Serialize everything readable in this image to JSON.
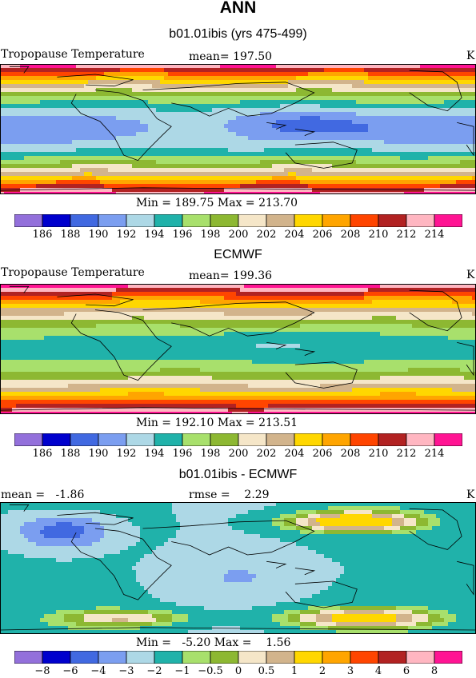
{
  "page": {
    "title": "ANN"
  },
  "panels": [
    {
      "subtitle": "b01.01ibis (yrs 475-499)",
      "left_label": "Tropopause Temperature",
      "center_label": "mean= 197.50",
      "right_label": "K",
      "minmax": "Min = 189.75 Max = 213.70",
      "palette": "abs",
      "scenario": "model"
    },
    {
      "subtitle": "ECMWF",
      "left_label": "Tropopause Temperature",
      "center_label": "mean= 199.36",
      "right_label": "K",
      "minmax": "Min = 192.10 Max = 213.51",
      "palette": "abs",
      "scenario": "obs"
    },
    {
      "subtitle": "b01.01ibis - ECMWF",
      "left_label": "mean =   -1.86",
      "center_label": "rmse =    2.29",
      "right_label": "K",
      "minmax": "Min =   -5.20 Max =    1.56",
      "palette": "diff",
      "scenario": "diff"
    }
  ],
  "colorbars": {
    "abs": {
      "colors": [
        "#9370DB",
        "#0000CD",
        "#4169E1",
        "#7B9EF0",
        "#ADD8E6",
        "#20B2AA",
        "#A8E06C",
        "#8DB832",
        "#F5E6C8",
        "#D2B48C",
        "#FFD700",
        "#FFA500",
        "#FF4500",
        "#B22222",
        "#FFB6C1",
        "#FF1493"
      ],
      "labels": [
        "186",
        "188",
        "190",
        "192",
        "194",
        "196",
        "198",
        "200",
        "202",
        "204",
        "206",
        "208",
        "210",
        "212",
        "214"
      ]
    },
    "diff": {
      "colors": [
        "#9370DB",
        "#0000CD",
        "#4169E1",
        "#7B9EF0",
        "#ADD8E6",
        "#20B2AA",
        "#A8E06C",
        "#8DB832",
        "#F5E6C8",
        "#D2B48C",
        "#FFD700",
        "#FFA500",
        "#FF4500",
        "#B22222",
        "#FFB6C1",
        "#FF1493"
      ],
      "labels": [
        "−8",
        "−6",
        "−4",
        "−3",
        "−2",
        "−1",
        "−0.5",
        "0",
        "0.5",
        "1",
        "2",
        "3",
        "4",
        "6",
        "8"
      ]
    }
  }
}
